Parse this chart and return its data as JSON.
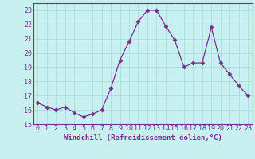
{
  "x": [
    0,
    1,
    2,
    3,
    4,
    5,
    6,
    7,
    8,
    9,
    10,
    11,
    12,
    13,
    14,
    15,
    16,
    17,
    18,
    19,
    20,
    21,
    22,
    23
  ],
  "y": [
    16.5,
    16.2,
    16.0,
    16.2,
    15.8,
    15.5,
    15.7,
    16.0,
    17.5,
    19.5,
    20.8,
    22.2,
    23.0,
    23.0,
    21.9,
    20.9,
    19.0,
    19.3,
    19.3,
    21.8,
    19.3,
    18.5,
    17.7,
    17.0
  ],
  "line_color": "#7B2D8B",
  "marker": "D",
  "marker_size": 2.5,
  "bg_color": "#c8f0f0",
  "grid_color": "#aadddd",
  "xlabel": "Windchill (Refroidissement éolien,°C)",
  "xlim": [
    -0.5,
    23.5
  ],
  "ylim": [
    15,
    23.5
  ],
  "yticks": [
    15,
    16,
    17,
    18,
    19,
    20,
    21,
    22,
    23
  ],
  "xticks": [
    0,
    1,
    2,
    3,
    4,
    5,
    6,
    7,
    8,
    9,
    10,
    11,
    12,
    13,
    14,
    15,
    16,
    17,
    18,
    19,
    20,
    21,
    22,
    23
  ],
  "label_color": "#7B2D8B",
  "label_fontsize": 6.5,
  "tick_fontsize": 6,
  "spine_color": "#7B2D8B"
}
